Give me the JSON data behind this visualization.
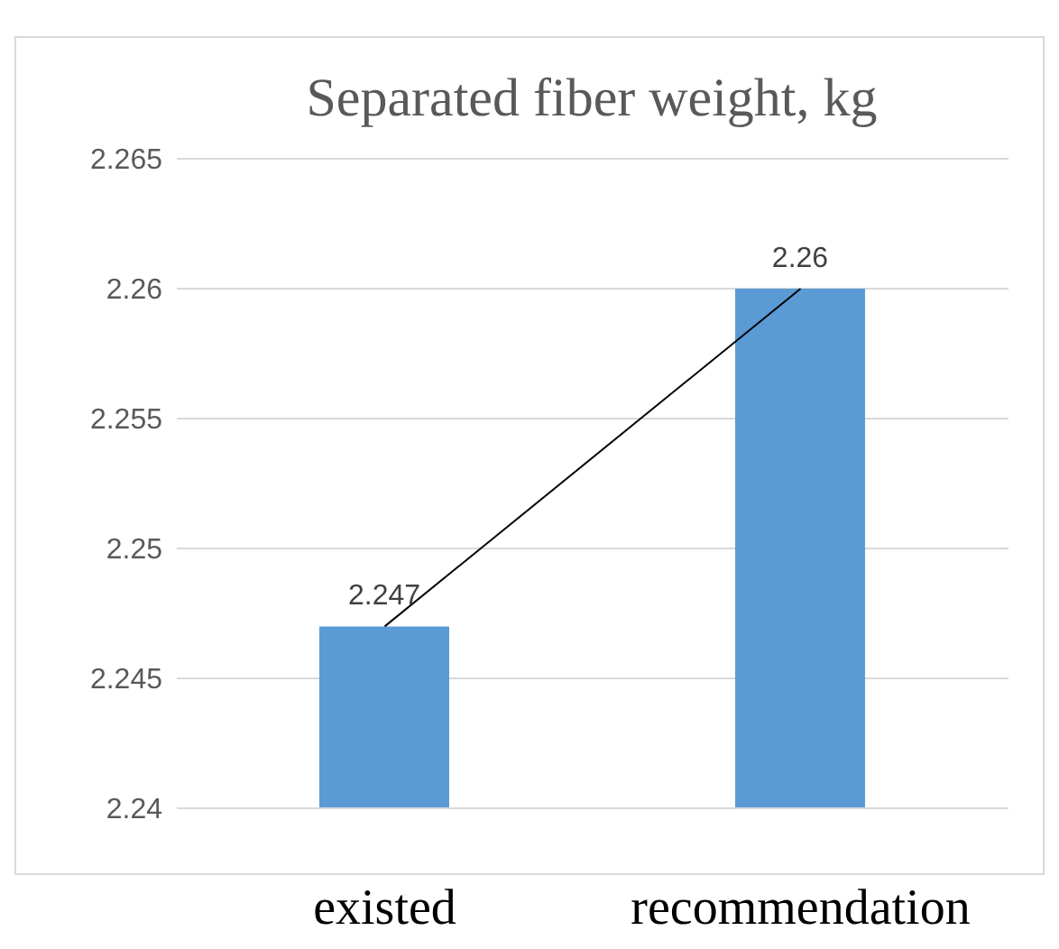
{
  "chart_data": {
    "type": "bar",
    "title": "Separated fiber weight, kg",
    "categories": [
      "existed",
      "recommendation"
    ],
    "series": [
      {
        "color": "#5b9bd5",
        "values": [
          2.247,
          2.26
        ],
        "value_labels": [
          "2.247",
          "2.26"
        ]
      },
      {
        "type": "line",
        "color": "#000000",
        "values": [
          2.247,
          2.26
        ]
      }
    ],
    "ylim": [
      2.24,
      2.265
    ],
    "yticks": [
      2.24,
      2.245,
      2.25,
      2.255,
      2.26,
      2.265
    ],
    "grid": "y",
    "marker": "none",
    "legend": false
  }
}
